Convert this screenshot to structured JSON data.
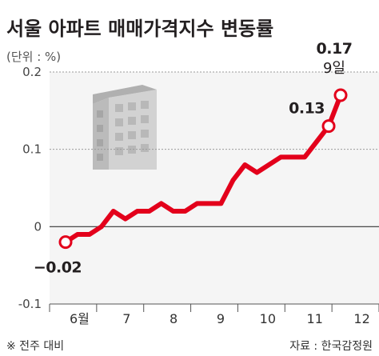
{
  "chart_data": {
    "type": "line",
    "title": "서울 아파트 매매가격지수 변동률",
    "unit_label": "(단위 : %)",
    "ylim": [
      -0.1,
      0.2
    ],
    "yticks": [
      {
        "value": 0.2,
        "label": "0.2"
      },
      {
        "value": 0.1,
        "label": "0.1"
      },
      {
        "value": 0,
        "label": "0"
      },
      {
        "value": -0.1,
        "label": "-0.1"
      }
    ],
    "x_month_labels": [
      "6월",
      "7",
      "8",
      "9",
      "10",
      "11",
      "12"
    ],
    "grid": true,
    "series": [
      {
        "color": "#e3001b",
        "values": [
          -0.02,
          -0.01,
          -0.01,
          0.0,
          0.02,
          0.01,
          0.02,
          0.02,
          0.03,
          0.02,
          0.02,
          0.03,
          0.03,
          0.03,
          0.06,
          0.08,
          0.07,
          0.08,
          0.09,
          0.09,
          0.09,
          0.11,
          0.13,
          0.17
        ]
      }
    ],
    "data_labels": [
      {
        "index": 0,
        "text": "−0.02"
      },
      {
        "index": 22,
        "text": "0.13"
      },
      {
        "index": 23,
        "text": "0.17"
      }
    ],
    "annotation": {
      "index": 23,
      "text": "9일"
    },
    "footnote_left": "※ 전주 대비",
    "source": "자료 : 한국감정원"
  },
  "icon": "apartment-building-icon"
}
